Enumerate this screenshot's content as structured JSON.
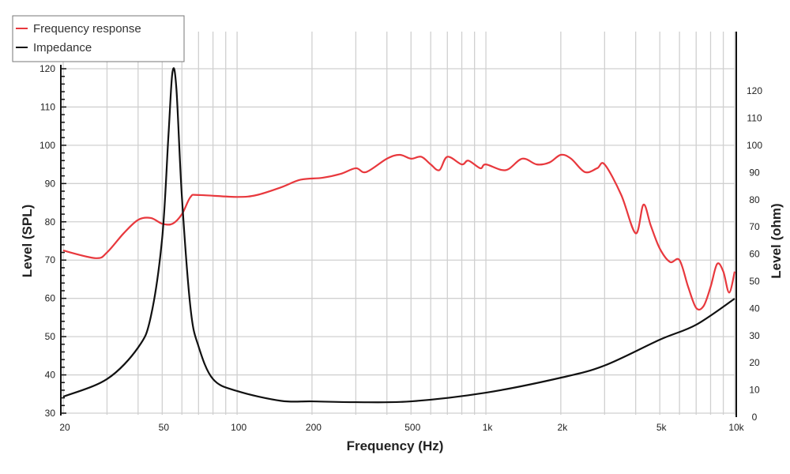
{
  "chart_data": {
    "type": "line",
    "title": "",
    "xlabel": "Frequency (Hz)",
    "ylabel": "Level (SPL)",
    "y2label": "Level (ohm)",
    "xscale": "log",
    "xlim": [
      20,
      10000
    ],
    "ylim": [
      30,
      120
    ],
    "y2lim": [
      0,
      128
    ],
    "grid": true,
    "legend_position": "top-left",
    "x_ticks": [
      {
        "v": 20,
        "l": "20"
      },
      {
        "v": 50,
        "l": "50"
      },
      {
        "v": 100,
        "l": "100"
      },
      {
        "v": 200,
        "l": "200"
      },
      {
        "v": 500,
        "l": "500"
      },
      {
        "v": 1000,
        "l": "1k"
      },
      {
        "v": 2000,
        "l": "2k"
      },
      {
        "v": 5000,
        "l": "5k"
      },
      {
        "v": 10000,
        "l": "10k"
      }
    ],
    "y_ticks": [
      30,
      40,
      50,
      60,
      70,
      80,
      90,
      100,
      110,
      120
    ],
    "y2_ticks": [
      0,
      10,
      20,
      30,
      40,
      50,
      60,
      70,
      80,
      90,
      100,
      110,
      120
    ],
    "series": [
      {
        "name": "Frequency response",
        "axis": "left",
        "color": "#e8383d",
        "x": [
          20,
          27,
          30,
          35,
          40,
          45,
          50,
          55,
          60,
          65,
          70,
          100,
          120,
          150,
          180,
          220,
          260,
          300,
          330,
          400,
          450,
          500,
          550,
          600,
          650,
          700,
          800,
          850,
          950,
          1000,
          1200,
          1400,
          1600,
          1800,
          2000,
          2200,
          2500,
          2800,
          3000,
          3500,
          4000,
          4300,
          4600,
          5000,
          5500,
          6000,
          6500,
          7000,
          7500,
          8000,
          8500,
          9000,
          9500,
          10000
        ],
        "y": [
          72.5,
          70.5,
          72,
          77,
          80.5,
          81,
          79.5,
          79.5,
          82,
          86.5,
          87,
          86.5,
          87,
          89,
          91,
          91.5,
          92.5,
          94,
          93,
          96.5,
          97.5,
          96.5,
          97,
          95,
          93.5,
          97,
          95,
          96,
          94,
          95,
          93.5,
          96.5,
          95,
          95.5,
          97.5,
          96.5,
          93,
          94,
          95,
          87,
          77,
          84.5,
          79,
          73,
          69.5,
          70,
          63,
          57.5,
          58,
          63,
          69,
          67,
          61.5,
          67
        ]
      },
      {
        "name": "Impedance",
        "axis": "right",
        "color": "#111111",
        "x": [
          20,
          30,
          40,
          45,
          50,
          53,
          55,
          57,
          60,
          65,
          70,
          80,
          100,
          150,
          200,
          300,
          500,
          1000,
          2000,
          3000,
          5000,
          7000,
          10000
        ],
        "y": [
          7.5,
          14,
          25.6,
          37,
          66,
          104,
          127,
          121,
          81,
          40,
          26,
          14,
          9.6,
          6,
          5.8,
          5.5,
          5.8,
          9,
          14.5,
          19,
          28.5,
          34,
          43.6
        ]
      }
    ]
  }
}
